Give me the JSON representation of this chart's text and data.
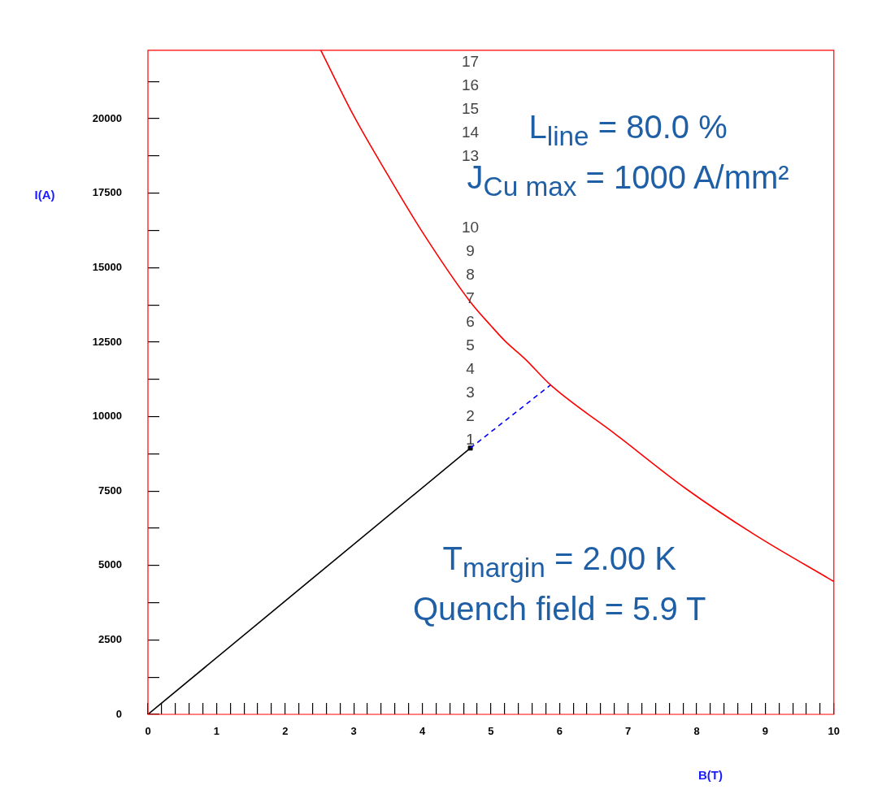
{
  "chart_data": {
    "type": "line",
    "xlabel": "B(T)",
    "ylabel": "I(A)",
    "xlim": [
      0,
      10
    ],
    "ylim": [
      0,
      22300
    ],
    "xticks": [
      0,
      {
        "value": 0.2,
        "label": null
      },
      {
        "value": 0.4,
        "label": null
      },
      {
        "value": 0.6,
        "label": null
      },
      {
        "value": 0.8,
        "label": null
      },
      1,
      {
        "value": 1.2,
        "label": null
      },
      {
        "value": 1.4,
        "label": null
      },
      {
        "value": 1.6,
        "label": null
      },
      {
        "value": 1.8,
        "label": null
      },
      2,
      {
        "value": 2.2,
        "label": null
      },
      {
        "value": 2.4,
        "label": null
      },
      {
        "value": 2.6,
        "label": null
      },
      {
        "value": 2.8,
        "label": null
      },
      3,
      {
        "value": 3.2,
        "label": null
      },
      {
        "value": 3.4,
        "label": null
      },
      {
        "value": 3.6,
        "label": null
      },
      {
        "value": 3.8,
        "label": null
      },
      4,
      {
        "value": 4.2,
        "label": null
      },
      {
        "value": 4.4,
        "label": null
      },
      {
        "value": 4.6,
        "label": null
      },
      {
        "value": 4.8,
        "label": null
      },
      5,
      {
        "value": 5.2,
        "label": null
      },
      {
        "value": 5.4,
        "label": null
      },
      {
        "value": 5.6,
        "label": null
      },
      {
        "value": 5.8,
        "label": null
      },
      6,
      {
        "value": 6.2,
        "label": null
      },
      {
        "value": 6.4,
        "label": null
      },
      {
        "value": 6.6,
        "label": null
      },
      {
        "value": 6.8,
        "label": null
      },
      7,
      {
        "value": 7.2,
        "label": null
      },
      {
        "value": 7.4,
        "label": null
      },
      {
        "value": 7.6,
        "label": null
      },
      {
        "value": 7.8,
        "label": null
      },
      8,
      {
        "value": 8.2,
        "label": null
      },
      {
        "value": 8.4,
        "label": null
      },
      {
        "value": 8.6,
        "label": null
      },
      {
        "value": 8.8,
        "label": null
      },
      9,
      {
        "value": 9.2,
        "label": null
      },
      {
        "value": 9.4,
        "label": null
      },
      {
        "value": 9.6,
        "label": null
      },
      {
        "value": 9.8,
        "label": null
      },
      10
    ],
    "yticks": [
      0,
      {
        "value": 1250,
        "label": null
      },
      2500,
      {
        "value": 3750,
        "label": null
      },
      5000,
      {
        "value": 6250,
        "label": null
      },
      7500,
      {
        "value": 8750,
        "label": null
      },
      10000,
      {
        "value": 11250,
        "label": null
      },
      12500,
      {
        "value": 13750,
        "label": null
      },
      15000,
      {
        "value": 16250,
        "label": null
      },
      17500,
      {
        "value": 18750,
        "label": null
      },
      20000,
      {
        "value": 21250,
        "label": null
      }
    ],
    "series": [
      {
        "type": "line",
        "color": "#ff0000",
        "x": [
          2.52,
          3,
          3.5,
          4,
          4.7,
          5,
          5.2,
          5.5,
          5.87,
          6.82,
          7.83,
          8.84,
          10
        ],
        "values": [
          22300,
          20100,
          18100,
          16200,
          13850,
          13050,
          12550,
          11930,
          11060,
          9400,
          7600,
          6040,
          4460
        ]
      },
      {
        "type": "line",
        "color": "#000000",
        "x": [
          0,
          4.7
        ],
        "values": [
          0,
          8940
        ]
      },
      {
        "type": "line",
        "color": "#0000ff",
        "line_style": "dashed",
        "x": [
          4.7,
          5.87
        ],
        "values": [
          8940,
          11060
        ]
      },
      {
        "type": "scatter",
        "color": "#000000",
        "marker": "square",
        "x": [
          4.7
        ],
        "values": [
          8940
        ]
      }
    ],
    "annotations": [
      "L$_{line}$ = 80.0 %",
      "J$_{Cu max}$ = 1000 A/mm²",
      "T$_{margin}$ = 2.00 K",
      "Quench field = 5.9 T",
      "1",
      "2",
      "3",
      "4",
      "5",
      "6",
      "7",
      "8",
      "9",
      "10",
      "13",
      "14",
      "15",
      "16",
      "17"
    ]
  }
}
